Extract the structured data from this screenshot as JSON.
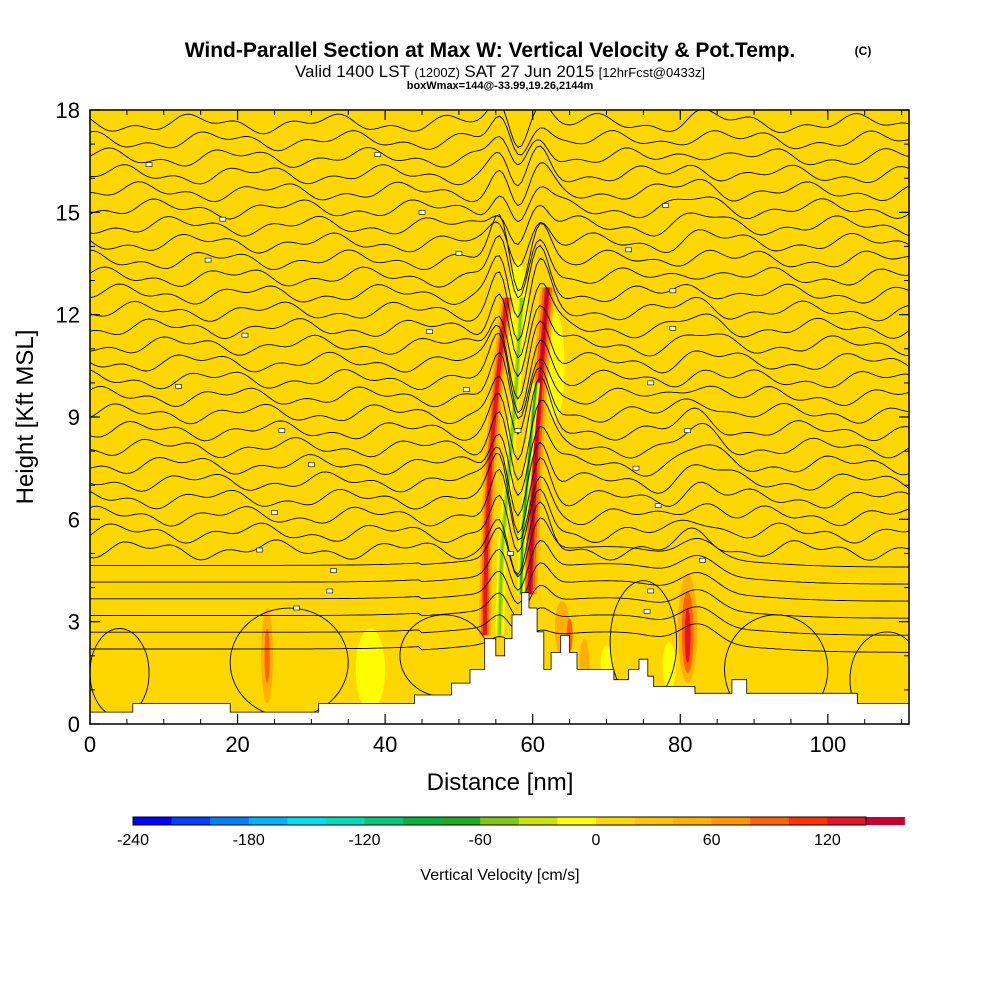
{
  "chart_data": {
    "type": "contour-cross-section",
    "title": "Wind-Parallel Section at Max W: Vertical Velocity & Pot.Temp.",
    "copyright": "(C)",
    "subtitle": {
      "valid": "Valid 1400 LST",
      "utc": "(1200Z)",
      "date": "SAT 27 Jun 2015",
      "forecast": "[12hrFcst@0433z]"
    },
    "box_info": "boxWmax=144@-33.99,19.26,2144m",
    "xlabel": "Distance [nm]",
    "ylabel": "Height [Kft MSL]",
    "xlim": [
      0,
      111
    ],
    "ylim": [
      0,
      18
    ],
    "x_ticks": [
      0,
      20,
      40,
      60,
      80,
      100
    ],
    "y_ticks": [
      0,
      3,
      6,
      9,
      12,
      15,
      18
    ],
    "colorbar": {
      "label": "Vertical Velocity [cm/s]",
      "min": -240,
      "max": 140,
      "step": 20,
      "tick_labels": [
        -240,
        -180,
        -120,
        -60,
        0,
        60,
        120
      ],
      "colors": [
        "#0000ff",
        "#0040ff",
        "#0080ff",
        "#00b4ff",
        "#00e0f0",
        "#00dcb4",
        "#00c878",
        "#00b43c",
        "#20aa20",
        "#80c814",
        "#c8e600",
        "#ffff00",
        "#ffd700",
        "#ffc300",
        "#ffaf00",
        "#ff9600",
        "#ff6400",
        "#ff3200",
        "#e61428",
        "#c80032"
      ]
    },
    "background_w_range": [
      0,
      20
    ],
    "updraft_maxima_cm_s": [
      120,
      140
    ],
    "downdraft_minima_cm_s": [
      -80,
      -60
    ],
    "max_w": 144
  }
}
